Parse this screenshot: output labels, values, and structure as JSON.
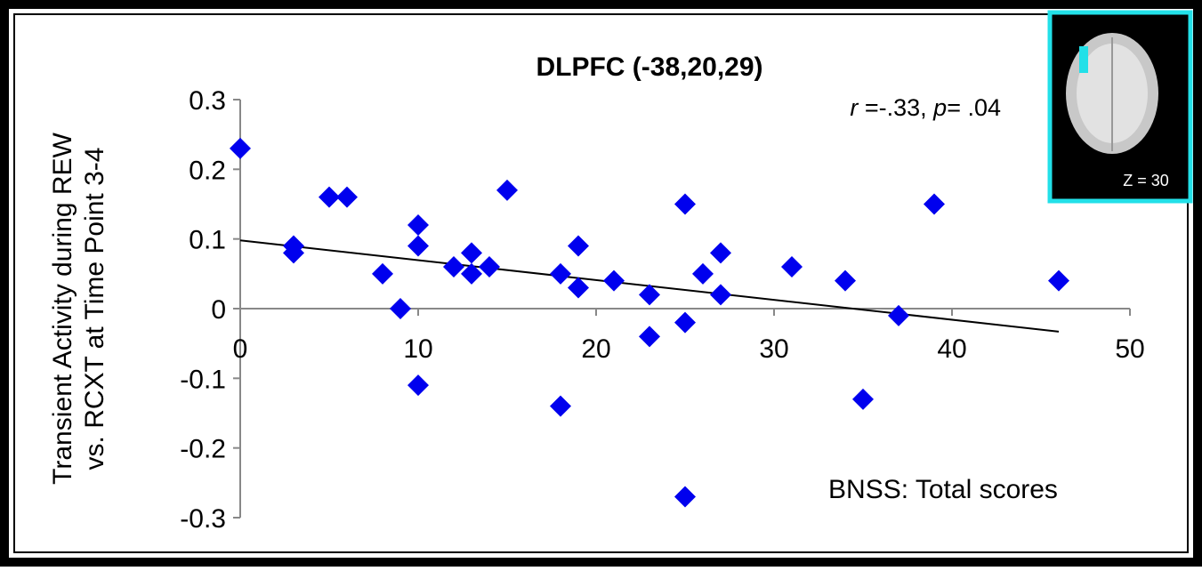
{
  "chart_data": {
    "type": "scatter",
    "title": "DLPFC (-38,20,29)",
    "annotation": [
      "r",
      " =-.33, ",
      "p",
      "= .04"
    ],
    "x_label": "BNSS: Total scores",
    "y_label": [
      "Transient Activity during REW",
      "vs. RCXT at Time Point 3-4"
    ],
    "inset_label": "Z = 30",
    "color": "#0000ee",
    "x": [
      0,
      3,
      3,
      5,
      6,
      8,
      9,
      10,
      10,
      10,
      12,
      13,
      13,
      14,
      15,
      18,
      18,
      19,
      19,
      21,
      23,
      23,
      25,
      25,
      25,
      26,
      27,
      27,
      31,
      34,
      35,
      37,
      39,
      46
    ],
    "values": [
      0.23,
      0.09,
      0.08,
      0.16,
      0.16,
      0.05,
      0.0,
      0.12,
      0.09,
      -0.11,
      0.06,
      0.08,
      0.05,
      0.06,
      0.17,
      0.05,
      -0.14,
      0.09,
      0.03,
      0.04,
      0.02,
      -0.04,
      0.15,
      -0.02,
      -0.27,
      0.05,
      0.08,
      0.02,
      0.06,
      0.04,
      -0.13,
      -0.01,
      0.15,
      0.04
    ],
    "trendline": {
      "x": [
        0,
        46
      ],
      "y": [
        0.098,
        -0.033
      ]
    },
    "xlim": [
      0,
      50
    ],
    "xticks": [
      0,
      10,
      20,
      30,
      40,
      50
    ],
    "ylim": [
      -0.3,
      0.3
    ],
    "yticks": [
      0.3,
      0.2,
      0.1,
      0,
      -0.1,
      -0.2,
      -0.3
    ]
  }
}
